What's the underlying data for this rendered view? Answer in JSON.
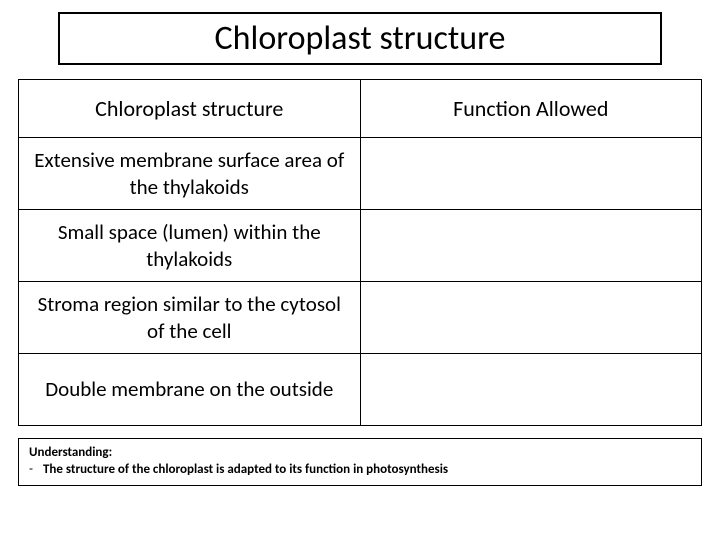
{
  "title": "Chloroplast structure",
  "table": {
    "columns": [
      "Chloroplast structure",
      "Function Allowed"
    ],
    "rows": [
      {
        "structure": "Extensive membrane surface area of the thylakoids",
        "function": ""
      },
      {
        "structure": "Small space (lumen) within the thylakoids",
        "function": ""
      },
      {
        "structure": "Stroma region similar to the cytosol of the cell",
        "function": ""
      },
      {
        "structure": "Double membrane on the outside",
        "function": ""
      }
    ],
    "column_widths_pct": [
      50,
      50
    ],
    "border_color": "#000000",
    "header_fontsize": 22,
    "cell_fontsize": 21
  },
  "footer": {
    "label": "Understanding:",
    "item": "The structure of the chloroplast is adapted to its function in photosynthesis"
  },
  "colors": {
    "background": "#ffffff",
    "text": "#000000",
    "border": "#000000"
  },
  "typography": {
    "title_fontsize": 34,
    "footer_fontsize": 13,
    "font_family": "Calibri"
  }
}
